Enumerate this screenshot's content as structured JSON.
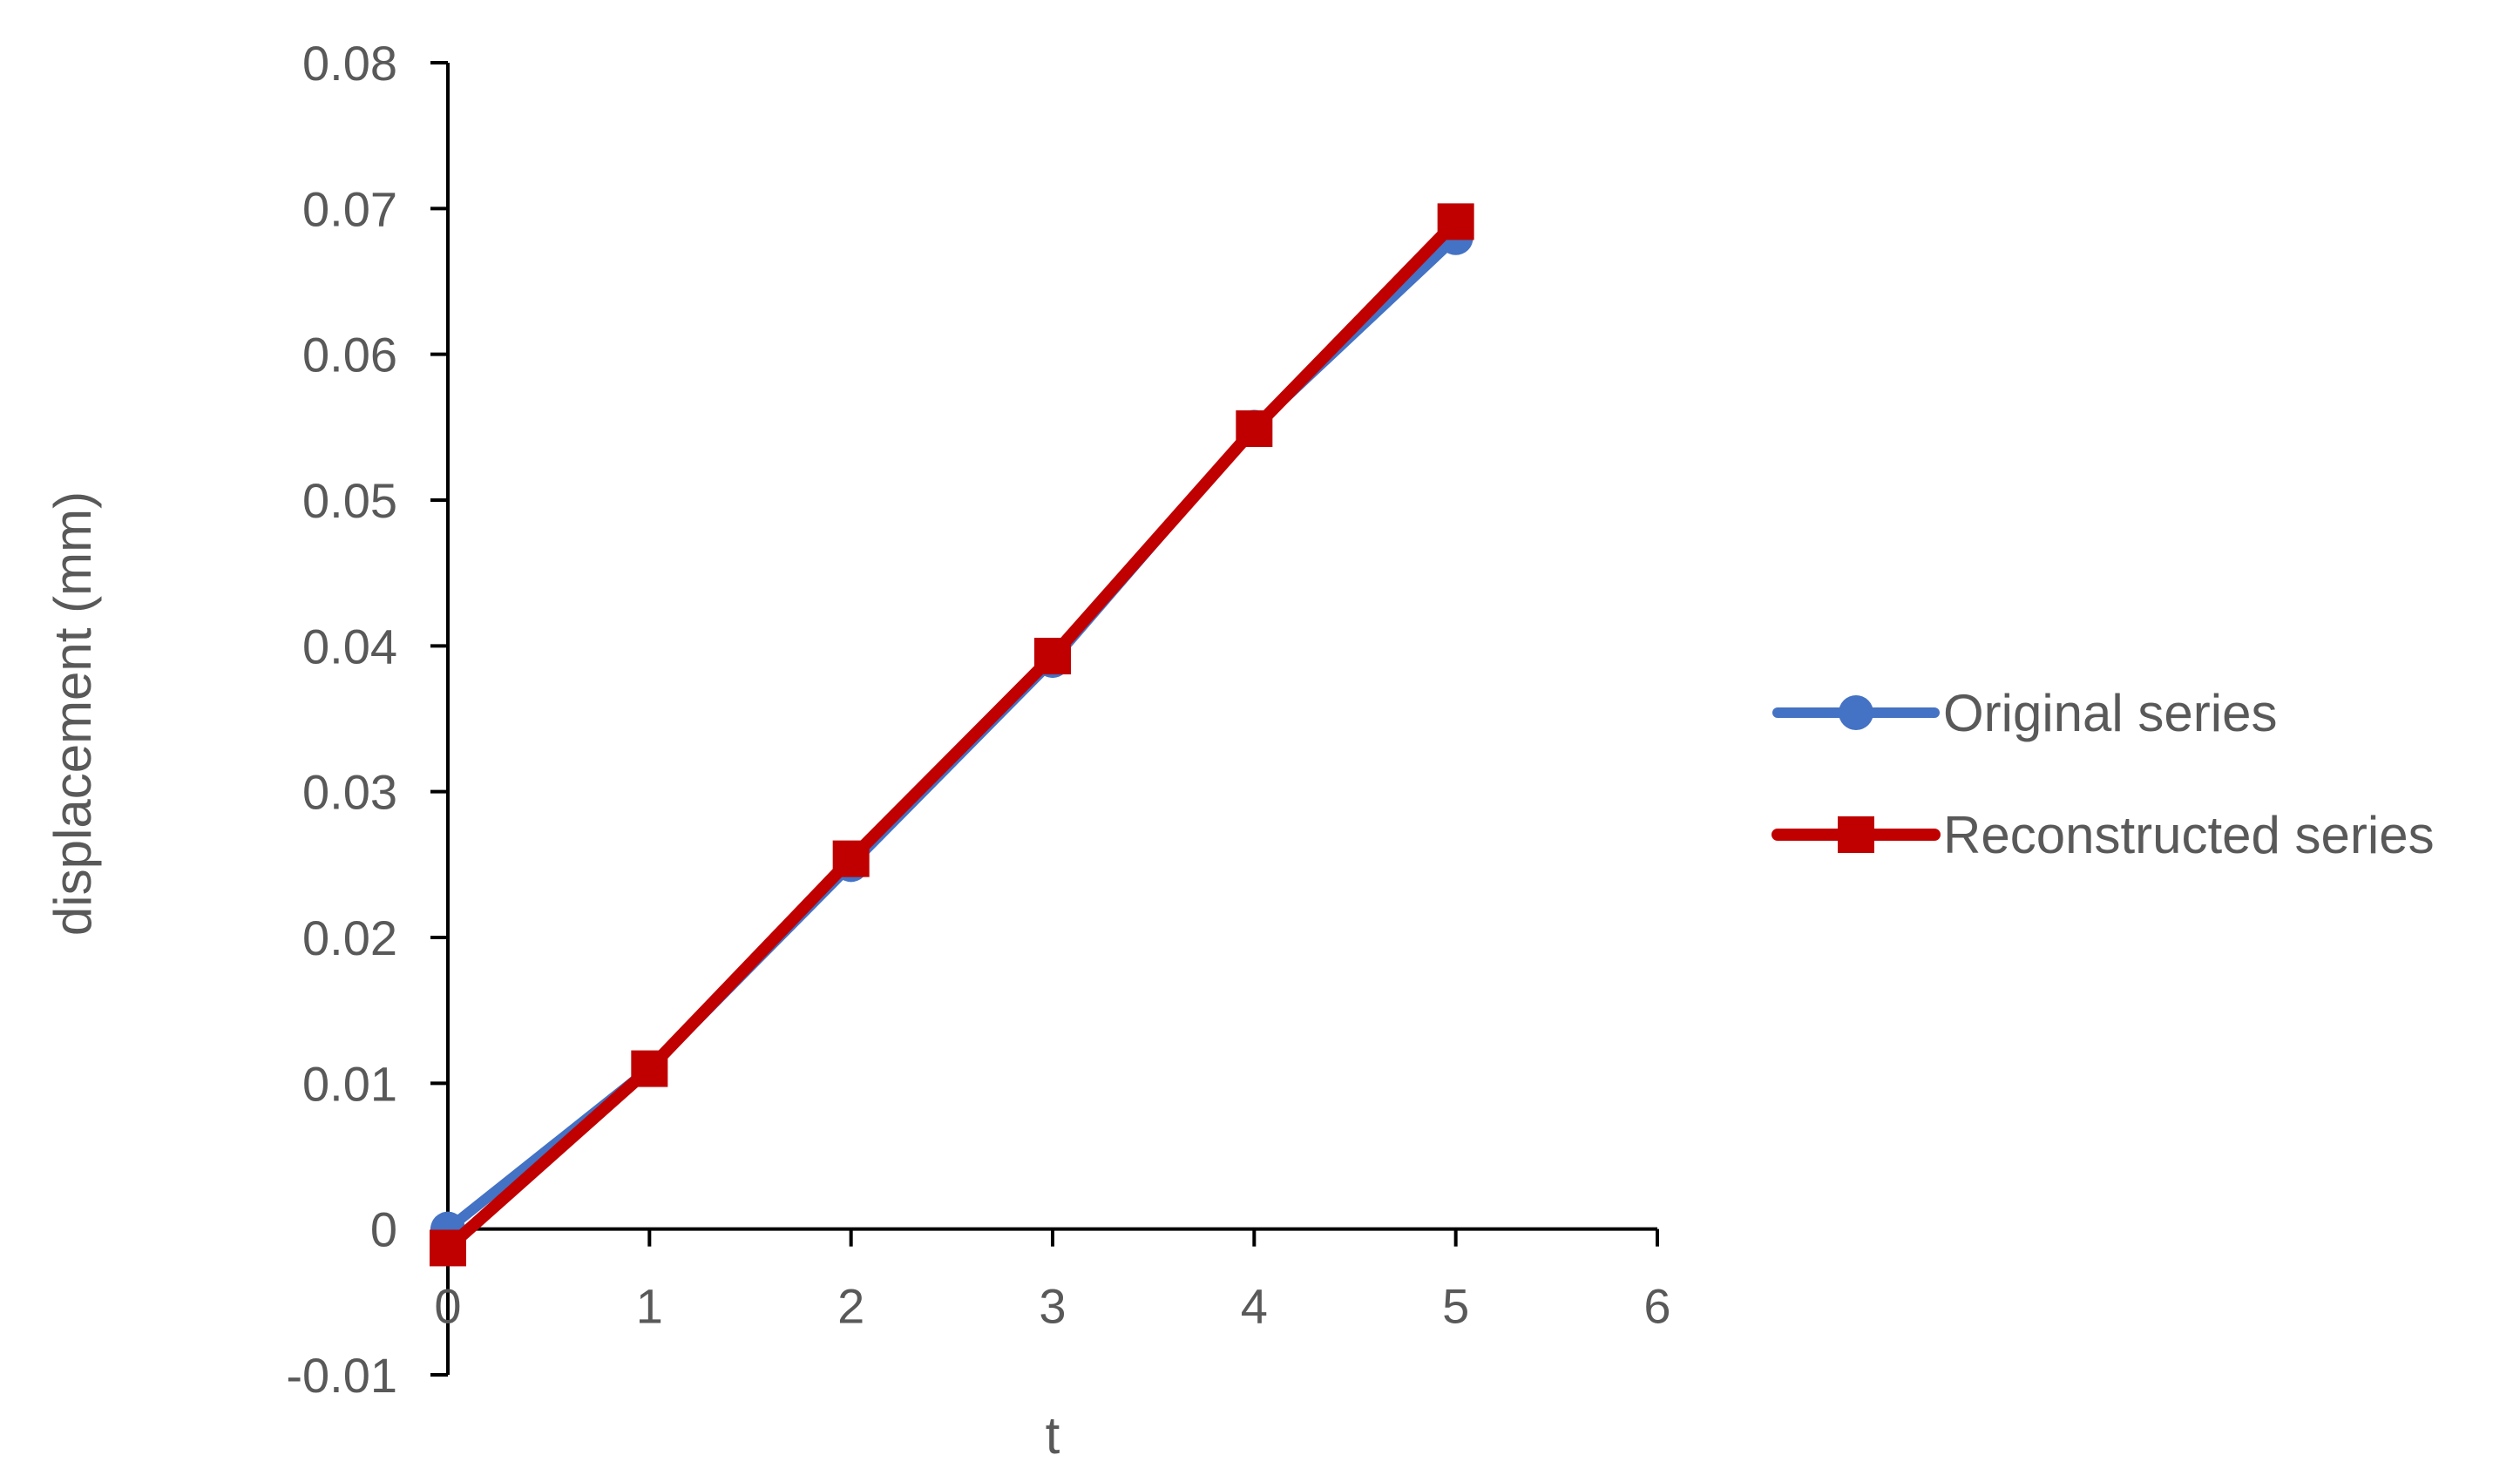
{
  "chart_data": {
    "type": "line",
    "title": "",
    "xlabel": "t",
    "ylabel": "displacement (mm)",
    "xlim": [
      0,
      6
    ],
    "ylim": [
      -0.01,
      0.08
    ],
    "xticks": [
      0,
      1,
      2,
      3,
      4,
      5,
      6
    ],
    "yticks": [
      -0.01,
      0,
      0.01,
      0.02,
      0.03,
      0.04,
      0.05,
      0.06,
      0.07,
      0.08
    ],
    "ytick_labels": [
      "-0.01",
      "0",
      "0.01",
      "0.02",
      "0.03",
      "0.04",
      "0.05",
      "0.06",
      "0.07",
      "0.08"
    ],
    "xtick_labels": [
      "0",
      "1",
      "2",
      "3",
      "4",
      "5",
      "6"
    ],
    "grid": false,
    "legend_position": "right",
    "x": [
      0,
      1,
      2,
      3,
      4,
      5
    ],
    "series": [
      {
        "name": "Original series",
        "values": [
          0.0,
          0.011,
          0.025,
          0.039,
          0.055,
          0.068
        ],
        "color": "#4472C4",
        "marker": "circle"
      },
      {
        "name": "Reconstructed series",
        "values": [
          -0.0013,
          0.011,
          0.0254,
          0.0393,
          0.0549,
          0.0691
        ],
        "color": "#C00000",
        "marker": "square"
      }
    ]
  }
}
